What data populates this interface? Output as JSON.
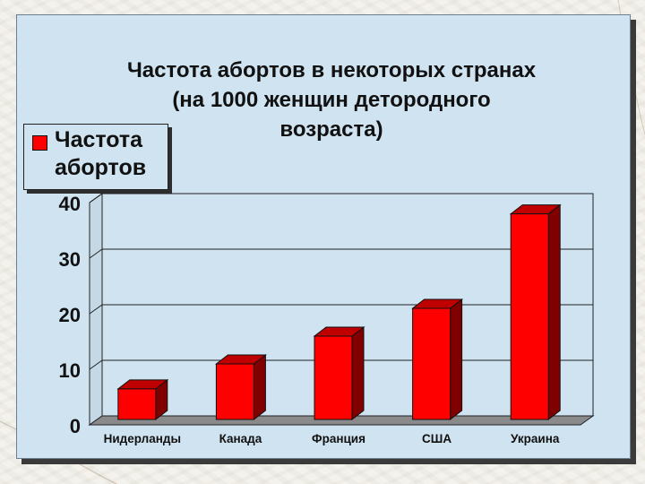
{
  "chart_data": {
    "type": "bar",
    "title": "Частота абортов в некоторых странах (на 1000 женщин детородного возраста)",
    "title_lines": [
      "Частота абортов в некоторых странах",
      "(на 1000 женщин детородного",
      "возраста)"
    ],
    "categories": [
      "Нидерланды",
      "Канада",
      "Франция",
      "США",
      "Украина"
    ],
    "series": [
      {
        "name": "Частота абортов",
        "values": [
          5.5,
          10,
          15,
          20,
          37
        ],
        "color": "#ff0000"
      }
    ],
    "y_ticks": [
      "0",
      "10",
      "20",
      "30",
      "40"
    ],
    "ylim": [
      0,
      40
    ],
    "grid": true,
    "legend_position": "top-left",
    "bar_style": "3d"
  }
}
